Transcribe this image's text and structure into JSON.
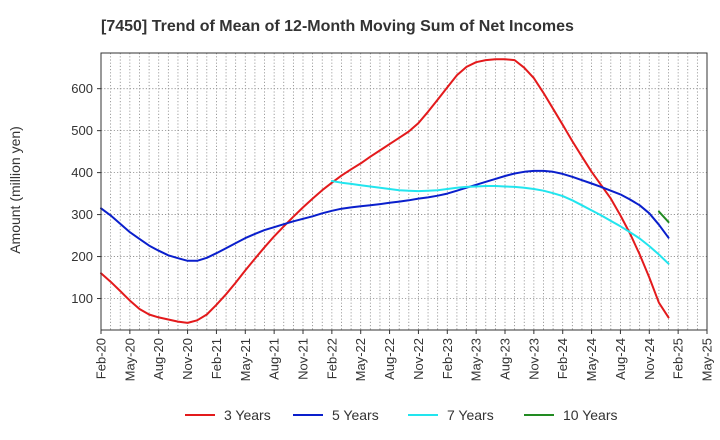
{
  "chart_data": {
    "type": "line",
    "title": "[7450]  Trend of Mean of 12-Month Moving Sum of Net Incomes",
    "xlabel": "",
    "ylabel": "Amount (million yen)",
    "x_range": [
      "2020-02",
      "2025-05"
    ],
    "ylim": [
      25,
      685
    ],
    "y_ticks": [
      100,
      200,
      300,
      400,
      500,
      600
    ],
    "x_ticks": [
      "Feb-20",
      "May-20",
      "Aug-20",
      "Nov-20",
      "Feb-21",
      "May-21",
      "Aug-21",
      "Nov-21",
      "Feb-22",
      "May-22",
      "Aug-22",
      "Nov-22",
      "Feb-23",
      "May-23",
      "Aug-23",
      "Nov-23",
      "Feb-24",
      "May-24",
      "Aug-24",
      "Nov-24",
      "Feb-25",
      "May-25"
    ],
    "grid": true,
    "legend_position": "bottom",
    "series": [
      {
        "name": "3 Years",
        "color": "#e31a1c",
        "points": [
          [
            "2020-02",
            160
          ],
          [
            "2020-03",
            140
          ],
          [
            "2020-04",
            118
          ],
          [
            "2020-05",
            95
          ],
          [
            "2020-06",
            75
          ],
          [
            "2020-07",
            62
          ],
          [
            "2020-08",
            55
          ],
          [
            "2020-09",
            50
          ],
          [
            "2020-10",
            45
          ],
          [
            "2020-11",
            42
          ],
          [
            "2020-12",
            48
          ],
          [
            "2021-01",
            62
          ],
          [
            "2021-02",
            85
          ],
          [
            "2021-03",
            110
          ],
          [
            "2021-04",
            138
          ],
          [
            "2021-05",
            167
          ],
          [
            "2021-06",
            195
          ],
          [
            "2021-07",
            222
          ],
          [
            "2021-08",
            248
          ],
          [
            "2021-09",
            272
          ],
          [
            "2021-10",
            295
          ],
          [
            "2021-11",
            317
          ],
          [
            "2021-12",
            338
          ],
          [
            "2022-01",
            358
          ],
          [
            "2022-02",
            376
          ],
          [
            "2022-03",
            393
          ],
          [
            "2022-04",
            408
          ],
          [
            "2022-05",
            422
          ],
          [
            "2022-06",
            438
          ],
          [
            "2022-07",
            453
          ],
          [
            "2022-08",
            468
          ],
          [
            "2022-09",
            483
          ],
          [
            "2022-10",
            498
          ],
          [
            "2022-11",
            518
          ],
          [
            "2022-12",
            545
          ],
          [
            "2023-01",
            574
          ],
          [
            "2023-02",
            603
          ],
          [
            "2023-03",
            632
          ],
          [
            "2023-04",
            652
          ],
          [
            "2023-05",
            663
          ],
          [
            "2023-06",
            668
          ],
          [
            "2023-07",
            670
          ],
          [
            "2023-08",
            670
          ],
          [
            "2023-09",
            668
          ],
          [
            "2023-10",
            650
          ],
          [
            "2023-11",
            625
          ],
          [
            "2023-12",
            590
          ],
          [
            "2024-01",
            552
          ],
          [
            "2024-02",
            514
          ],
          [
            "2024-03",
            475
          ],
          [
            "2024-04",
            438
          ],
          [
            "2024-05",
            402
          ],
          [
            "2024-06",
            370
          ],
          [
            "2024-07",
            338
          ],
          [
            "2024-08",
            298
          ],
          [
            "2024-09",
            255
          ],
          [
            "2024-10",
            205
          ],
          [
            "2024-11",
            150
          ],
          [
            "2024-12",
            90
          ],
          [
            "2025-01",
            55
          ]
        ]
      },
      {
        "name": "5 Years",
        "color": "#0a1fcc",
        "points": [
          [
            "2020-02",
            315
          ],
          [
            "2020-03",
            298
          ],
          [
            "2020-04",
            278
          ],
          [
            "2020-05",
            258
          ],
          [
            "2020-06",
            242
          ],
          [
            "2020-07",
            226
          ],
          [
            "2020-08",
            214
          ],
          [
            "2020-09",
            203
          ],
          [
            "2020-10",
            196
          ],
          [
            "2020-11",
            190
          ],
          [
            "2020-12",
            190
          ],
          [
            "2021-01",
            197
          ],
          [
            "2021-02",
            208
          ],
          [
            "2021-03",
            220
          ],
          [
            "2021-04",
            232
          ],
          [
            "2021-05",
            244
          ],
          [
            "2021-06",
            254
          ],
          [
            "2021-07",
            263
          ],
          [
            "2021-08",
            270
          ],
          [
            "2021-09",
            277
          ],
          [
            "2021-10",
            284
          ],
          [
            "2021-11",
            290
          ],
          [
            "2021-12",
            296
          ],
          [
            "2022-01",
            303
          ],
          [
            "2022-02",
            309
          ],
          [
            "2022-03",
            314
          ],
          [
            "2022-04",
            317
          ],
          [
            "2022-05",
            320
          ],
          [
            "2022-06",
            322
          ],
          [
            "2022-07",
            325
          ],
          [
            "2022-08",
            328
          ],
          [
            "2022-09",
            331
          ],
          [
            "2022-10",
            334
          ],
          [
            "2022-11",
            338
          ],
          [
            "2022-12",
            341
          ],
          [
            "2023-01",
            345
          ],
          [
            "2023-02",
            350
          ],
          [
            "2023-03",
            357
          ],
          [
            "2023-04",
            364
          ],
          [
            "2023-05",
            371
          ],
          [
            "2023-06",
            378
          ],
          [
            "2023-07",
            385
          ],
          [
            "2023-08",
            392
          ],
          [
            "2023-09",
            398
          ],
          [
            "2023-10",
            402
          ],
          [
            "2023-11",
            404
          ],
          [
            "2023-12",
            404
          ],
          [
            "2024-01",
            402
          ],
          [
            "2024-02",
            397
          ],
          [
            "2024-03",
            390
          ],
          [
            "2024-04",
            382
          ],
          [
            "2024-05",
            374
          ],
          [
            "2024-06",
            366
          ],
          [
            "2024-07",
            357
          ],
          [
            "2024-08",
            348
          ],
          [
            "2024-09",
            336
          ],
          [
            "2024-10",
            322
          ],
          [
            "2024-11",
            303
          ],
          [
            "2024-12",
            276
          ],
          [
            "2025-01",
            245
          ]
        ]
      },
      {
        "name": "7 Years",
        "color": "#22e5ee",
        "points": [
          [
            "2022-02",
            380
          ],
          [
            "2022-03",
            376
          ],
          [
            "2022-04",
            373
          ],
          [
            "2022-05",
            370
          ],
          [
            "2022-06",
            367
          ],
          [
            "2022-07",
            364
          ],
          [
            "2022-08",
            361
          ],
          [
            "2022-09",
            358
          ],
          [
            "2022-10",
            357
          ],
          [
            "2022-11",
            356
          ],
          [
            "2022-12",
            357
          ],
          [
            "2023-01",
            358
          ],
          [
            "2023-02",
            361
          ],
          [
            "2023-03",
            364
          ],
          [
            "2023-04",
            366
          ],
          [
            "2023-05",
            367
          ],
          [
            "2023-06",
            368
          ],
          [
            "2023-07",
            368
          ],
          [
            "2023-08",
            367
          ],
          [
            "2023-09",
            366
          ],
          [
            "2023-10",
            364
          ],
          [
            "2023-11",
            361
          ],
          [
            "2023-12",
            357
          ],
          [
            "2024-01",
            351
          ],
          [
            "2024-02",
            344
          ],
          [
            "2024-03",
            334
          ],
          [
            "2024-04",
            322
          ],
          [
            "2024-05",
            310
          ],
          [
            "2024-06",
            298
          ],
          [
            "2024-07",
            285
          ],
          [
            "2024-08",
            272
          ],
          [
            "2024-09",
            258
          ],
          [
            "2024-10",
            243
          ],
          [
            "2024-11",
            225
          ],
          [
            "2024-12",
            205
          ],
          [
            "2025-01",
            183
          ]
        ]
      },
      {
        "name": "10 Years",
        "color": "#228b22",
        "points": [
          [
            "2024-12",
            307
          ],
          [
            "2025-01",
            282
          ]
        ]
      }
    ]
  }
}
